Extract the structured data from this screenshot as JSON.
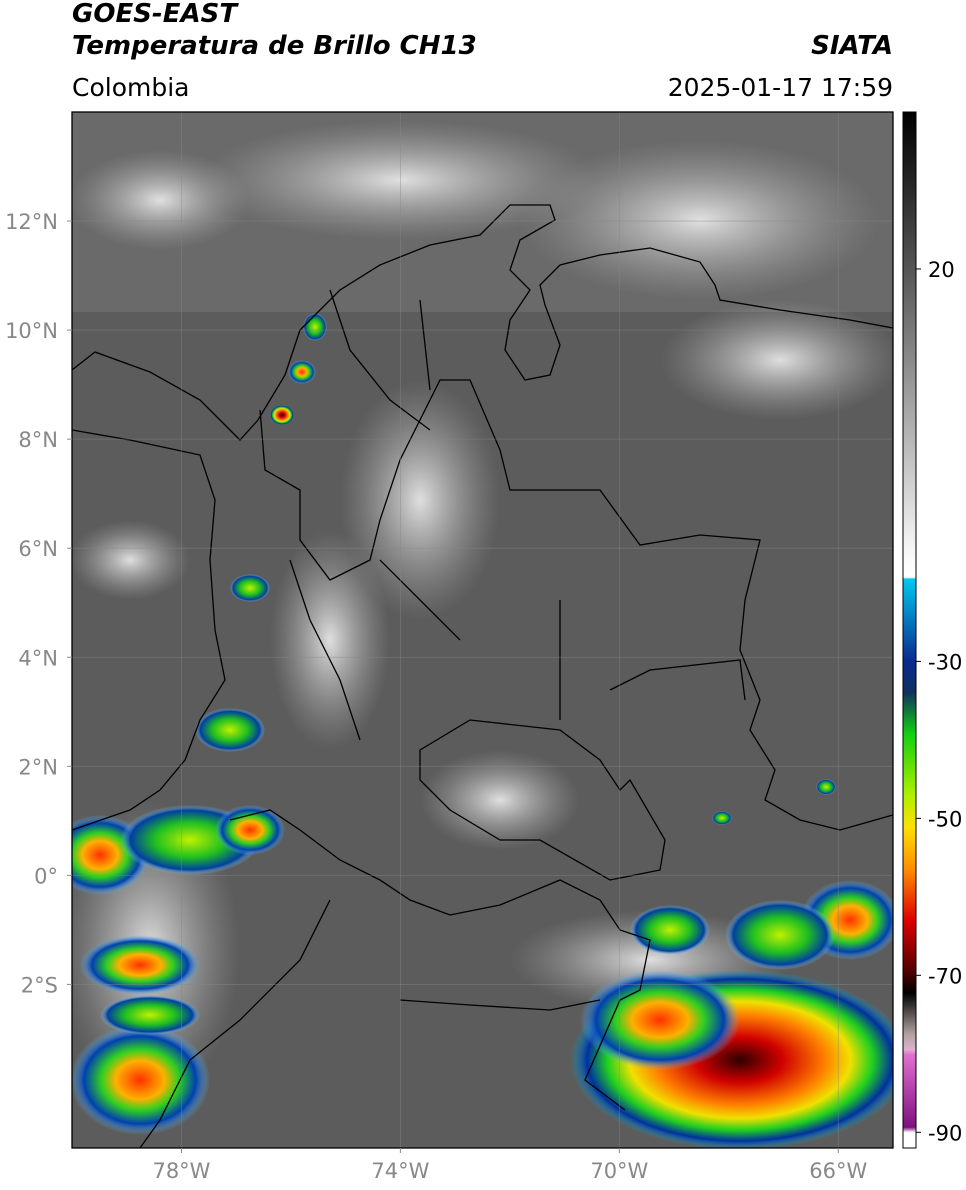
{
  "header": {
    "title": "GOES-EAST",
    "subtitle": "Temperatura de Brillo CH13",
    "source": "SIATA",
    "region": "Colombia",
    "timestamp": "2025-01-17 17:59"
  },
  "map": {
    "xlim": [
      -80,
      -65
    ],
    "ylim": [
      -5,
      14
    ],
    "xticks": [
      {
        "value": -78,
        "label": "78°W"
      },
      {
        "value": -74,
        "label": "74°W"
      },
      {
        "value": -70,
        "label": "70°W"
      },
      {
        "value": -66,
        "label": "66°W"
      }
    ],
    "yticks": [
      {
        "value": 12,
        "label": "12°N"
      },
      {
        "value": 10,
        "label": "10°N"
      },
      {
        "value": 8,
        "label": "8°N"
      },
      {
        "value": 6,
        "label": "6°N"
      },
      {
        "value": 4,
        "label": "4°N"
      },
      {
        "value": 2,
        "label": "2°N"
      },
      {
        "value": 0,
        "label": "0°"
      },
      {
        "value": -2,
        "label": "2°S"
      }
    ],
    "grid": true
  },
  "colorbar": {
    "lim": [
      -92,
      40
    ],
    "ticks": [
      20,
      -30,
      -50,
      -70,
      -90
    ]
  }
}
